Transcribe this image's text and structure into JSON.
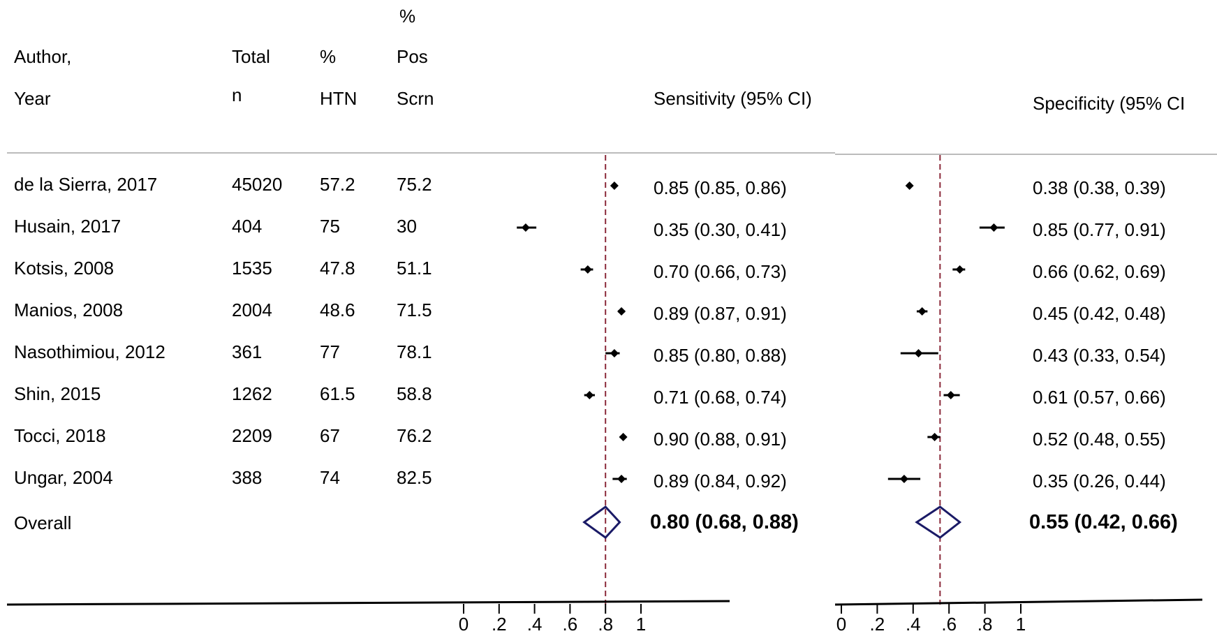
{
  "columns": {
    "author": [
      "Author,",
      "Year"
    ],
    "total": [
      "Total",
      "n"
    ],
    "htn": [
      "%",
      "HTN"
    ],
    "pos": [
      "%",
      "Pos",
      "Scrn"
    ],
    "sensitivity": "Sensitivity (95% CI)",
    "specificity": "Specificity (95% CI"
  },
  "studies": [
    {
      "author": "de la Sierra, 2017",
      "total": "45020",
      "htn": "57.2",
      "pos": "75.2",
      "sens_label": "0.85 (0.85, 0.86)",
      "spec_label": "0.38 (0.38, 0.39)"
    },
    {
      "author": "Husain, 2017",
      "total": "404",
      "htn": "75",
      "pos": "30",
      "sens_label": "0.35 (0.30, 0.41)",
      "spec_label": "0.85 (0.77, 0.91)"
    },
    {
      "author": "Kotsis, 2008",
      "total": "1535",
      "htn": "47.8",
      "pos": "51.1",
      "sens_label": "0.70 (0.66, 0.73)",
      "spec_label": "0.66 (0.62, 0.69)"
    },
    {
      "author": "Manios, 2008",
      "total": "2004",
      "htn": "48.6",
      "pos": "71.5",
      "sens_label": "0.89 (0.87, 0.91)",
      "spec_label": "0.45 (0.42, 0.48)"
    },
    {
      "author": "Nasothimiou, 2012",
      "total": "361",
      "htn": "77",
      "pos": "78.1",
      "sens_label": "0.85 (0.80, 0.88)",
      "spec_label": "0.43 (0.33, 0.54)"
    },
    {
      "author": "Shin, 2015",
      "total": "1262",
      "htn": "61.5",
      "pos": "58.8",
      "sens_label": "0.71 (0.68, 0.74)",
      "spec_label": "0.61 (0.57, 0.66)"
    },
    {
      "author": "Tocci, 2018",
      "total": "2209",
      "htn": "67",
      "pos": "76.2",
      "sens_label": "0.90 (0.88, 0.91)",
      "spec_label": "0.52 (0.48, 0.55)"
    },
    {
      "author": "Ungar, 2004",
      "total": "388",
      "htn": "74",
      "pos": "82.5",
      "sens_label": "0.89 (0.84, 0.92)",
      "spec_label": "0.35 (0.26, 0.44)"
    }
  ],
  "overall": {
    "author": "Overall",
    "sens_label": "0.80 (0.68, 0.88)",
    "spec_label": "0.55 (0.42, 0.66)"
  },
  "colors": {
    "reference_line": "#8b2a3a",
    "summary_diamond": "#1a1a66",
    "text": "#000000"
  },
  "chart_data": [
    {
      "type": "forest",
      "measure": "Sensitivity",
      "title": "Sensitivity (95% CI)",
      "xlim": [
        0,
        1
      ],
      "ticks": [
        0,
        0.2,
        0.4,
        0.6,
        0.8,
        1
      ],
      "tick_labels": [
        "0",
        ".2",
        ".4",
        ".6",
        ".8",
        "1"
      ],
      "estimates": [
        0.85,
        0.35,
        0.7,
        0.89,
        0.85,
        0.71,
        0.9,
        0.89
      ],
      "lower": [
        0.85,
        0.3,
        0.66,
        0.87,
        0.8,
        0.68,
        0.88,
        0.84
      ],
      "upper": [
        0.86,
        0.41,
        0.73,
        0.91,
        0.88,
        0.74,
        0.91,
        0.92
      ],
      "overall": {
        "estimate": 0.8,
        "lower": 0.68,
        "upper": 0.88
      },
      "reference_line": 0.8
    },
    {
      "type": "forest",
      "measure": "Specificity",
      "title": "Specificity (95% CI",
      "xlim": [
        0,
        1
      ],
      "ticks": [
        0,
        0.2,
        0.4,
        0.6,
        0.8,
        1
      ],
      "tick_labels": [
        "0",
        ".2",
        ".4",
        ".6",
        ".8",
        "1"
      ],
      "estimates": [
        0.38,
        0.85,
        0.66,
        0.45,
        0.43,
        0.61,
        0.52,
        0.35
      ],
      "lower": [
        0.38,
        0.77,
        0.62,
        0.42,
        0.33,
        0.57,
        0.48,
        0.26
      ],
      "upper": [
        0.39,
        0.91,
        0.69,
        0.48,
        0.54,
        0.66,
        0.55,
        0.44
      ],
      "overall": {
        "estimate": 0.55,
        "lower": 0.42,
        "upper": 0.66
      },
      "reference_line": 0.55
    }
  ]
}
